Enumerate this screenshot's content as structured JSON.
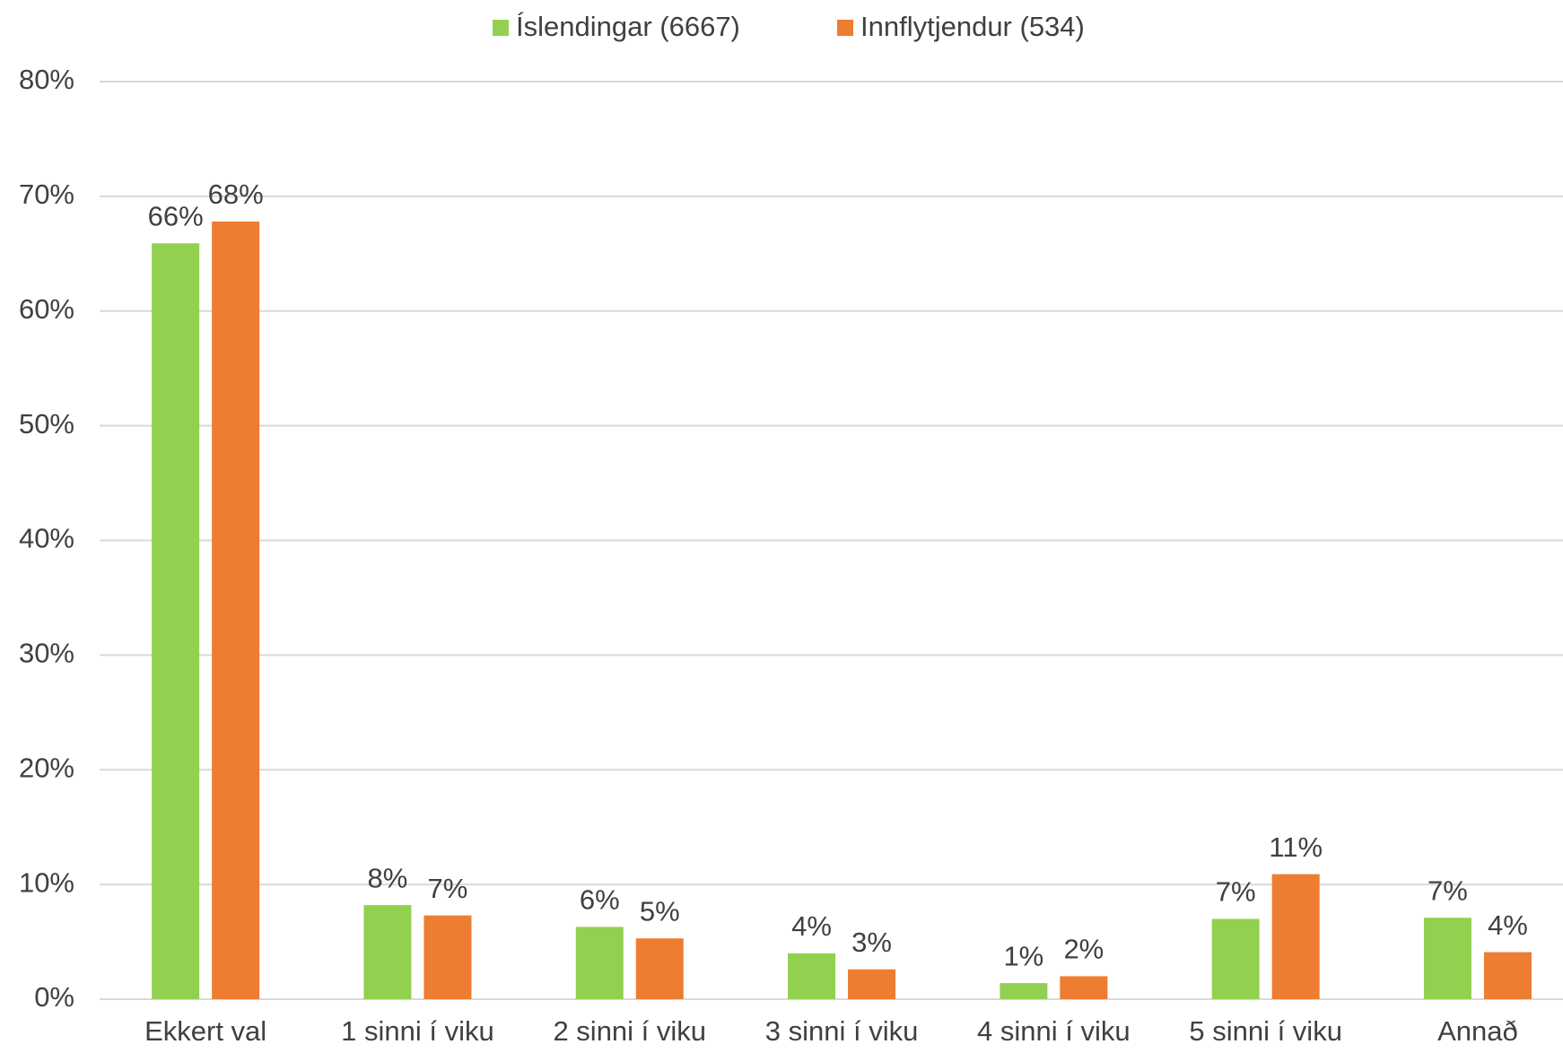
{
  "chart_data": {
    "type": "bar",
    "categories": [
      "Ekkert val",
      "1 sinni í viku",
      "2 sinni í viku",
      "3 sinni í viku",
      "4 sinni í viku",
      "5 sinni í viku",
      "Annað"
    ],
    "series": [
      {
        "name": "Íslendingar (6667)",
        "color": "#92d050",
        "values": [
          65.9,
          8.2,
          6.3,
          4.0,
          1.4,
          7.0,
          7.1
        ],
        "value_labels": [
          "66%",
          "8%",
          "6%",
          "4%",
          "1%",
          "7%",
          "7%"
        ]
      },
      {
        "name": "Innflytjendur (534)",
        "color": "#ed7d31",
        "values": [
          67.8,
          7.3,
          5.3,
          2.6,
          2.0,
          10.9,
          4.1
        ],
        "value_labels": [
          "68%",
          "7%",
          "5%",
          "3%",
          "2%",
          "11%",
          "4%"
        ]
      }
    ],
    "ylim": [
      0,
      80
    ],
    "yticks": [
      {
        "value": 0,
        "label": "0%"
      },
      {
        "value": 10,
        "label": "10%"
      },
      {
        "value": 20,
        "label": "20%"
      },
      {
        "value": 30,
        "label": "30%"
      },
      {
        "value": 40,
        "label": "40%"
      },
      {
        "value": 50,
        "label": "50%"
      },
      {
        "value": 60,
        "label": "60%"
      },
      {
        "value": 70,
        "label": "70%"
      },
      {
        "value": 80,
        "label": "80%"
      }
    ],
    "grid": true,
    "legend": "top"
  }
}
